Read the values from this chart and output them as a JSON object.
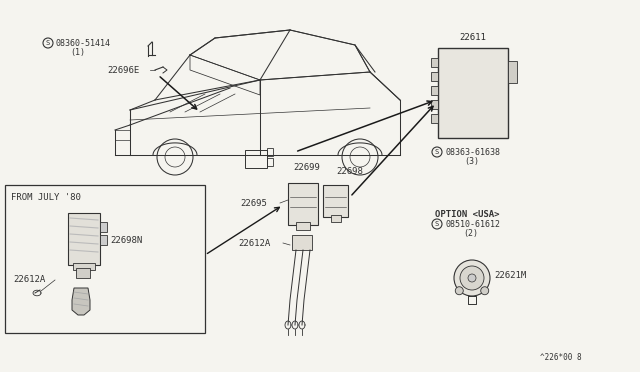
{
  "bg_color": "#f5f4ef",
  "diagram_color": "#2a2a2a",
  "line_color": "#1a1a1a",
  "fig_width": 6.4,
  "fig_height": 3.72,
  "dpi": 100,
  "labels": {
    "s_08360": "08360-51414",
    "s_08360_sub": "(1)",
    "22696E": "22696E",
    "22611": "22611",
    "s_08363": "08363-61638",
    "s_08363_sub": "(3)",
    "22699": "22699",
    "22698": "22698",
    "22695": "22695",
    "22612A_center": "22612A",
    "22612A_left": "22612A",
    "22698N": "22698N",
    "from_july": "FROM JULY '80",
    "option_usa": "OPTION <USA>",
    "s_08510": "08510-61612",
    "s_08510_sub": "(2)",
    "22621M": "22621M"
  },
  "font_size_small": 6.0,
  "font_size_label": 6.5
}
